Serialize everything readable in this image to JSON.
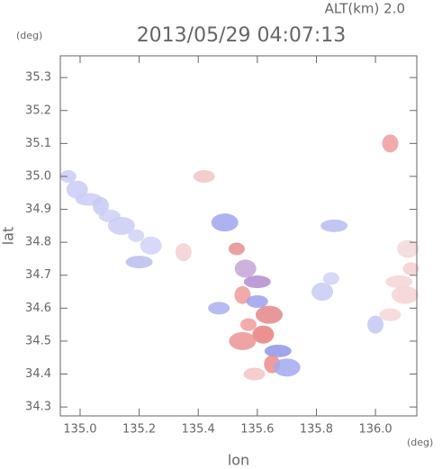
{
  "chart_data": {
    "type": "scatter",
    "title": "2013/05/29 04:07:13",
    "annotation": "ALT(km) 2.0",
    "y_unit": "(deg)",
    "x_unit": "(deg)",
    "x_label": "lon",
    "y_label": "lat",
    "xlim": [
      134.933,
      136.14
    ],
    "ylim": [
      34.273,
      35.366
    ],
    "xticks": [
      {
        "value": 135,
        "label": "135.0"
      },
      135.2,
      135.4,
      135.6,
      135.8,
      {
        "value": 136,
        "label": "136.0"
      }
    ],
    "yticks": [
      34.3,
      34.4,
      34.5,
      34.6,
      34.7,
      34.8,
      34.9,
      {
        "value": 35,
        "label": "35.0"
      },
      35.1,
      35.2,
      35.3
    ],
    "x": [
      134.96,
      134.99,
      135.03,
      135.07,
      135.1,
      135.14,
      135.19,
      135.24,
      135.2,
      135.35,
      135.42,
      135.49,
      135.53,
      135.56,
      135.6,
      135.55,
      135.6,
      135.64,
      135.57,
      135.62,
      135.67,
      135.65,
      135.59,
      135.7,
      135.85,
      135.82,
      135.86,
      136.0,
      136.05,
      136.1,
      136.12,
      136.11,
      136.08,
      136.05,
      135.47,
      135.55
    ],
    "values": [
      35.0,
      34.96,
      34.93,
      34.91,
      34.88,
      34.85,
      34.82,
      34.79,
      34.74,
      34.77,
      35.0,
      34.86,
      34.78,
      34.72,
      34.68,
      34.64,
      34.62,
      34.58,
      34.55,
      34.52,
      34.47,
      34.43,
      34.4,
      34.42,
      34.69,
      34.65,
      34.85,
      34.55,
      34.58,
      34.64,
      34.72,
      34.78,
      34.68,
      35.1,
      34.6,
      34.5
    ],
    "colors": [
      "#c9cdf4",
      "#c9cdf4",
      "#c9cdf4",
      "#c6caf3",
      "#cdd0f5",
      "#c9cdf4",
      "#d0d3f6",
      "#cfd2f6",
      "#b8bdf0",
      "#f3d0d0",
      "#f2c4c4",
      "#9fa6ee",
      "#e88f8f",
      "#c6a4d8",
      "#b38bcf",
      "#ef9a9a",
      "#9aa1ec",
      "#e48686",
      "#f19c9c",
      "#e87e7e",
      "#8e96ea",
      "#ee8b8b",
      "#f4c3c3",
      "#a2a9ee",
      "#cfd2f6",
      "#c7cbf4",
      "#b7bcf0",
      "#c4c8f3",
      "#f4d6d6",
      "#f5d4d4",
      "#f6cfcf",
      "#f3d8d8",
      "#f6d3d3",
      "#ef9c9c",
      "#a9afee",
      "#ec9494"
    ]
  }
}
